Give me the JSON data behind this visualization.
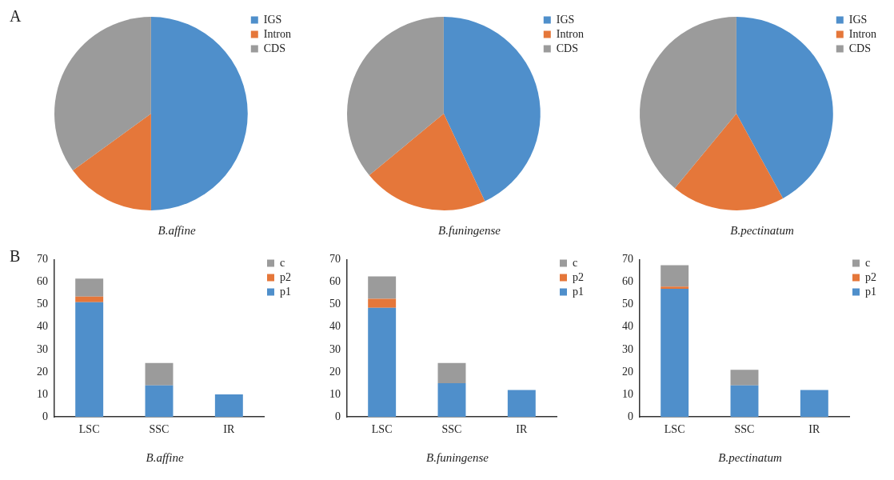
{
  "chart_data": [
    {
      "type": "pie",
      "title": "B.affine",
      "annotations": [
        "A"
      ],
      "categories": [
        "IGS",
        "Intron",
        "CDS"
      ],
      "values": [
        50,
        15,
        35
      ],
      "colors": [
        "#4f8fcb",
        "#e5773a",
        "#9b9b9b"
      ],
      "legend": "top right"
    },
    {
      "type": "pie",
      "title": "B.funingense",
      "categories": [
        "IGS",
        "Intron",
        "CDS"
      ],
      "values": [
        43,
        21,
        36
      ],
      "colors": [
        "#4f8fcb",
        "#e5773a",
        "#9b9b9b"
      ],
      "legend": "top right"
    },
    {
      "type": "pie",
      "title": "B.pectinatum",
      "categories": [
        "IGS",
        "Intron",
        "CDS"
      ],
      "values": [
        42,
        19,
        39
      ],
      "colors": [
        "#4f8fcb",
        "#e5773a",
        "#9b9b9b"
      ],
      "legend": "top right"
    },
    {
      "type": "bar",
      "title": "B.affine",
      "annotations": [
        "B"
      ],
      "stacked": true,
      "categories": [
        "LSC",
        "SSC",
        "IR"
      ],
      "ylim": [
        0,
        70
      ],
      "yticks": [
        0,
        10,
        20,
        30,
        40,
        50,
        60,
        70
      ],
      "grid": false,
      "legend": "top right",
      "series": [
        {
          "name": "p1",
          "color": "#4f8fcb",
          "values": [
            51,
            14,
            10
          ]
        },
        {
          "name": "p2",
          "color": "#e5773a",
          "values": [
            2.5,
            0,
            0
          ]
        },
        {
          "name": "c",
          "color": "#9b9b9b",
          "values": [
            8,
            10,
            0
          ]
        }
      ]
    },
    {
      "type": "bar",
      "title": "B.funingense",
      "stacked": true,
      "categories": [
        "LSC",
        "SSC",
        "IR"
      ],
      "ylim": [
        0,
        70
      ],
      "yticks": [
        0,
        10,
        20,
        30,
        40,
        50,
        60,
        70
      ],
      "grid": false,
      "legend": "top right",
      "series": [
        {
          "name": "p1",
          "color": "#4f8fcb",
          "values": [
            48.5,
            15,
            12
          ]
        },
        {
          "name": "p2",
          "color": "#e5773a",
          "values": [
            4,
            0,
            0
          ]
        },
        {
          "name": "c",
          "color": "#9b9b9b",
          "values": [
            10,
            9,
            0
          ]
        }
      ]
    },
    {
      "type": "bar",
      "title": "B.pectinatum",
      "stacked": true,
      "categories": [
        "LSC",
        "SSC",
        "IR"
      ],
      "ylim": [
        0,
        70
      ],
      "yticks": [
        0,
        10,
        20,
        30,
        40,
        50,
        60,
        70
      ],
      "grid": false,
      "legend": "top right",
      "series": [
        {
          "name": "p1",
          "color": "#4f8fcb",
          "values": [
            57,
            14,
            12
          ]
        },
        {
          "name": "p2",
          "color": "#e5773a",
          "values": [
            1,
            0,
            0
          ]
        },
        {
          "name": "c",
          "color": "#9b9b9b",
          "values": [
            9.5,
            7,
            0
          ]
        }
      ]
    }
  ]
}
